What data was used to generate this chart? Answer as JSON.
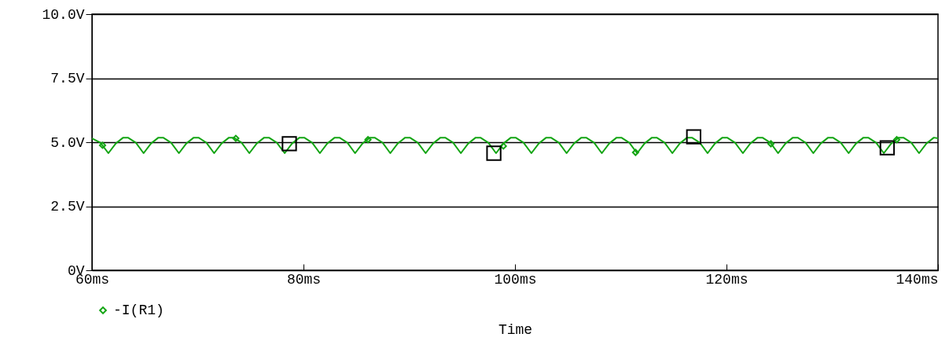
{
  "chart_data": {
    "type": "line",
    "xlabel": "Time",
    "xlim": [
      60,
      140
    ],
    "ylim": [
      0,
      10
    ],
    "xticks": [
      {
        "value": 60,
        "label": "60ms"
      },
      {
        "value": 80,
        "label": "80ms"
      },
      {
        "value": 100,
        "label": "100ms"
      },
      {
        "value": 120,
        "label": "120ms"
      },
      {
        "value": 140,
        "label": "140ms"
      }
    ],
    "yticks": [
      {
        "value": 0,
        "label": "0V"
      },
      {
        "value": 2.5,
        "label": "2.5V"
      },
      {
        "value": 5,
        "label": "5.0V"
      },
      {
        "value": 7.5,
        "label": "7.5V"
      },
      {
        "value": 10,
        "label": "10.0V"
      }
    ],
    "grid": "y",
    "legend": "bottom left",
    "marker": "diamond",
    "series": [
      {
        "name": "-I(R1)",
        "marker": "none",
        "color": "#14a514",
        "x": [
          60,
          60.8,
          61.55,
          62.25,
          62.95,
          63.4,
          64.15,
          64.88,
          65.58,
          66.28,
          66.73,
          67.48,
          68.22,
          68.92,
          69.62,
          70.07,
          70.82,
          71.55,
          72.25,
          72.95,
          73.4,
          74.15,
          74.88,
          75.58,
          76.28,
          76.73,
          77.48,
          78.22,
          78.92,
          79.62,
          80.07,
          80.82,
          81.55,
          82.25,
          82.95,
          83.4,
          84.15,
          84.88,
          85.58,
          86.28,
          86.73,
          87.48,
          88.21,
          88.91,
          89.61,
          90.06,
          90.81,
          91.55,
          92.25,
          92.95,
          93.4,
          94.15,
          94.88,
          95.58,
          96.28,
          96.73,
          97.48,
          98.21,
          98.91,
          99.61,
          100.06,
          100.81,
          101.55,
          102.25,
          102.95,
          103.4,
          104.15,
          104.88,
          105.58,
          106.28,
          106.73,
          107.48,
          108.21,
          108.91,
          109.61,
          110.06,
          110.81,
          111.55,
          112.25,
          112.95,
          113.4,
          114.15,
          114.88,
          115.58,
          116.28,
          116.73,
          117.48,
          118.21,
          118.91,
          119.61,
          120.06,
          120.81,
          121.55,
          122.25,
          122.95,
          123.4,
          124.15,
          124.88,
          125.58,
          126.28,
          126.73,
          127.48,
          128.21,
          128.91,
          129.61,
          130.06,
          130.81,
          131.55,
          132.25,
          132.95,
          133.4,
          134.15,
          134.88,
          135.58,
          136.28,
          136.73,
          137.48,
          138.21,
          138.91,
          139.61,
          140
        ],
        "values": [
          5.15,
          4.98,
          4.57,
          4.95,
          5.18,
          5.18,
          4.98,
          4.57,
          4.95,
          5.18,
          5.18,
          4.98,
          4.57,
          4.95,
          5.18,
          5.18,
          4.98,
          4.57,
          4.95,
          5.18,
          5.18,
          4.98,
          4.57,
          4.95,
          5.18,
          5.18,
          4.98,
          4.57,
          4.95,
          5.18,
          5.18,
          4.98,
          4.57,
          4.95,
          5.18,
          5.18,
          4.98,
          4.57,
          4.95,
          5.18,
          5.18,
          4.98,
          4.57,
          4.95,
          5.18,
          5.18,
          4.98,
          4.57,
          4.95,
          5.18,
          5.18,
          4.98,
          4.57,
          4.95,
          5.18,
          5.18,
          4.98,
          4.57,
          4.95,
          5.18,
          5.18,
          4.98,
          4.57,
          4.95,
          5.18,
          5.18,
          4.98,
          4.57,
          4.95,
          5.18,
          5.18,
          4.98,
          4.57,
          4.95,
          5.18,
          5.18,
          4.98,
          4.57,
          4.95,
          5.18,
          5.18,
          4.98,
          4.57,
          4.95,
          5.18,
          5.18,
          4.98,
          4.57,
          4.95,
          5.18,
          5.18,
          4.98,
          4.57,
          4.95,
          5.18,
          5.18,
          4.98,
          4.57,
          4.95,
          5.18,
          5.18,
          4.98,
          4.57,
          4.95,
          5.18,
          5.18,
          4.98,
          4.57,
          4.95,
          5.18,
          5.18,
          4.98,
          4.57,
          4.95,
          5.18,
          5.18,
          4.98,
          4.57,
          4.95,
          5.18,
          5.15
        ]
      },
      {
        "type": "scatter",
        "marker": "diamond",
        "color": "#14a514",
        "x": [
          61,
          73.6,
          86.1,
          98.9,
          111.4,
          124.2,
          136.1
        ],
        "values": [
          4.88,
          5.15,
          5.1,
          4.85,
          4.6,
          4.94,
          5.1
        ]
      },
      {
        "type": "scatter",
        "marker": "square",
        "color": "#000000",
        "x": [
          78.66,
          98,
          116.9,
          135.2
        ],
        "values": [
          4.94,
          4.57,
          5.21,
          4.78
        ]
      }
    ]
  }
}
